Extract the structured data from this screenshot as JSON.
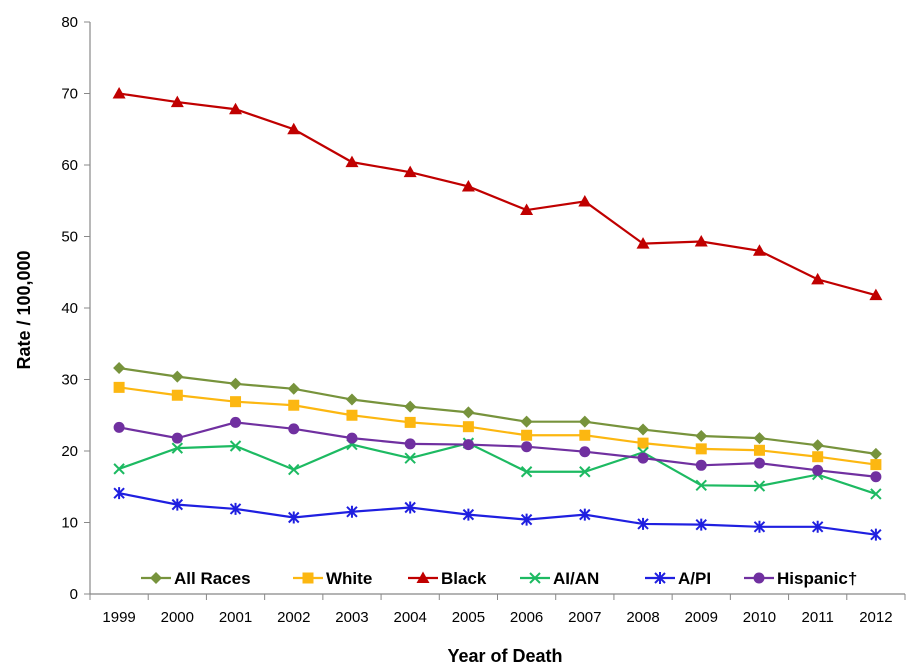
{
  "chart_data": {
    "type": "line",
    "title": "",
    "xlabel": "Year of Death",
    "ylabel": "Rate / 100,000",
    "x": [
      "1999",
      "2000",
      "2001",
      "2002",
      "2003",
      "2004",
      "2005",
      "2006",
      "2007",
      "2008",
      "2009",
      "2010",
      "2011",
      "2012"
    ],
    "ylim": [
      0,
      80
    ],
    "yticks": [
      "0",
      "10",
      "20",
      "30",
      "40",
      "50",
      "60",
      "70",
      "80"
    ],
    "grid": false,
    "legend_position": "bottom-inside",
    "series": [
      {
        "name": "All Races",
        "color": "#77933c",
        "marker": "diamond",
        "values": [
          31.6,
          30.4,
          29.4,
          28.7,
          27.2,
          26.2,
          25.4,
          24.1,
          24.1,
          23.0,
          22.1,
          21.8,
          20.8,
          19.6
        ]
      },
      {
        "name": "White",
        "color": "#fcb711",
        "marker": "square",
        "values": [
          28.9,
          27.8,
          26.9,
          26.4,
          25.0,
          24.0,
          23.4,
          22.2,
          22.2,
          21.1,
          20.3,
          20.1,
          19.2,
          18.1
        ]
      },
      {
        "name": "Black",
        "color": "#c00000",
        "marker": "triangle",
        "values": [
          70.0,
          68.8,
          67.8,
          65.0,
          60.4,
          59.0,
          57.0,
          53.7,
          54.9,
          49.0,
          49.3,
          48.0,
          44.0,
          41.8
        ]
      },
      {
        "name": "AI/AN",
        "color": "#1dba62",
        "marker": "x",
        "values": [
          17.5,
          20.4,
          20.7,
          17.4,
          20.9,
          19.0,
          21.1,
          17.1,
          17.1,
          19.8,
          15.2,
          15.1,
          16.7,
          14.0
        ]
      },
      {
        "name": "A/PI",
        "color": "#1f1fe0",
        "marker": "star",
        "values": [
          14.1,
          12.5,
          11.9,
          10.7,
          11.5,
          12.1,
          11.1,
          10.4,
          11.1,
          9.8,
          9.7,
          9.4,
          9.4,
          8.3
        ]
      },
      {
        "name": "Hispanic†",
        "color": "#7030a0",
        "marker": "circle",
        "values": [
          23.3,
          21.8,
          24.0,
          23.1,
          21.8,
          21.0,
          20.9,
          20.6,
          19.9,
          19.0,
          18.0,
          18.3,
          17.3,
          16.4
        ]
      }
    ]
  }
}
